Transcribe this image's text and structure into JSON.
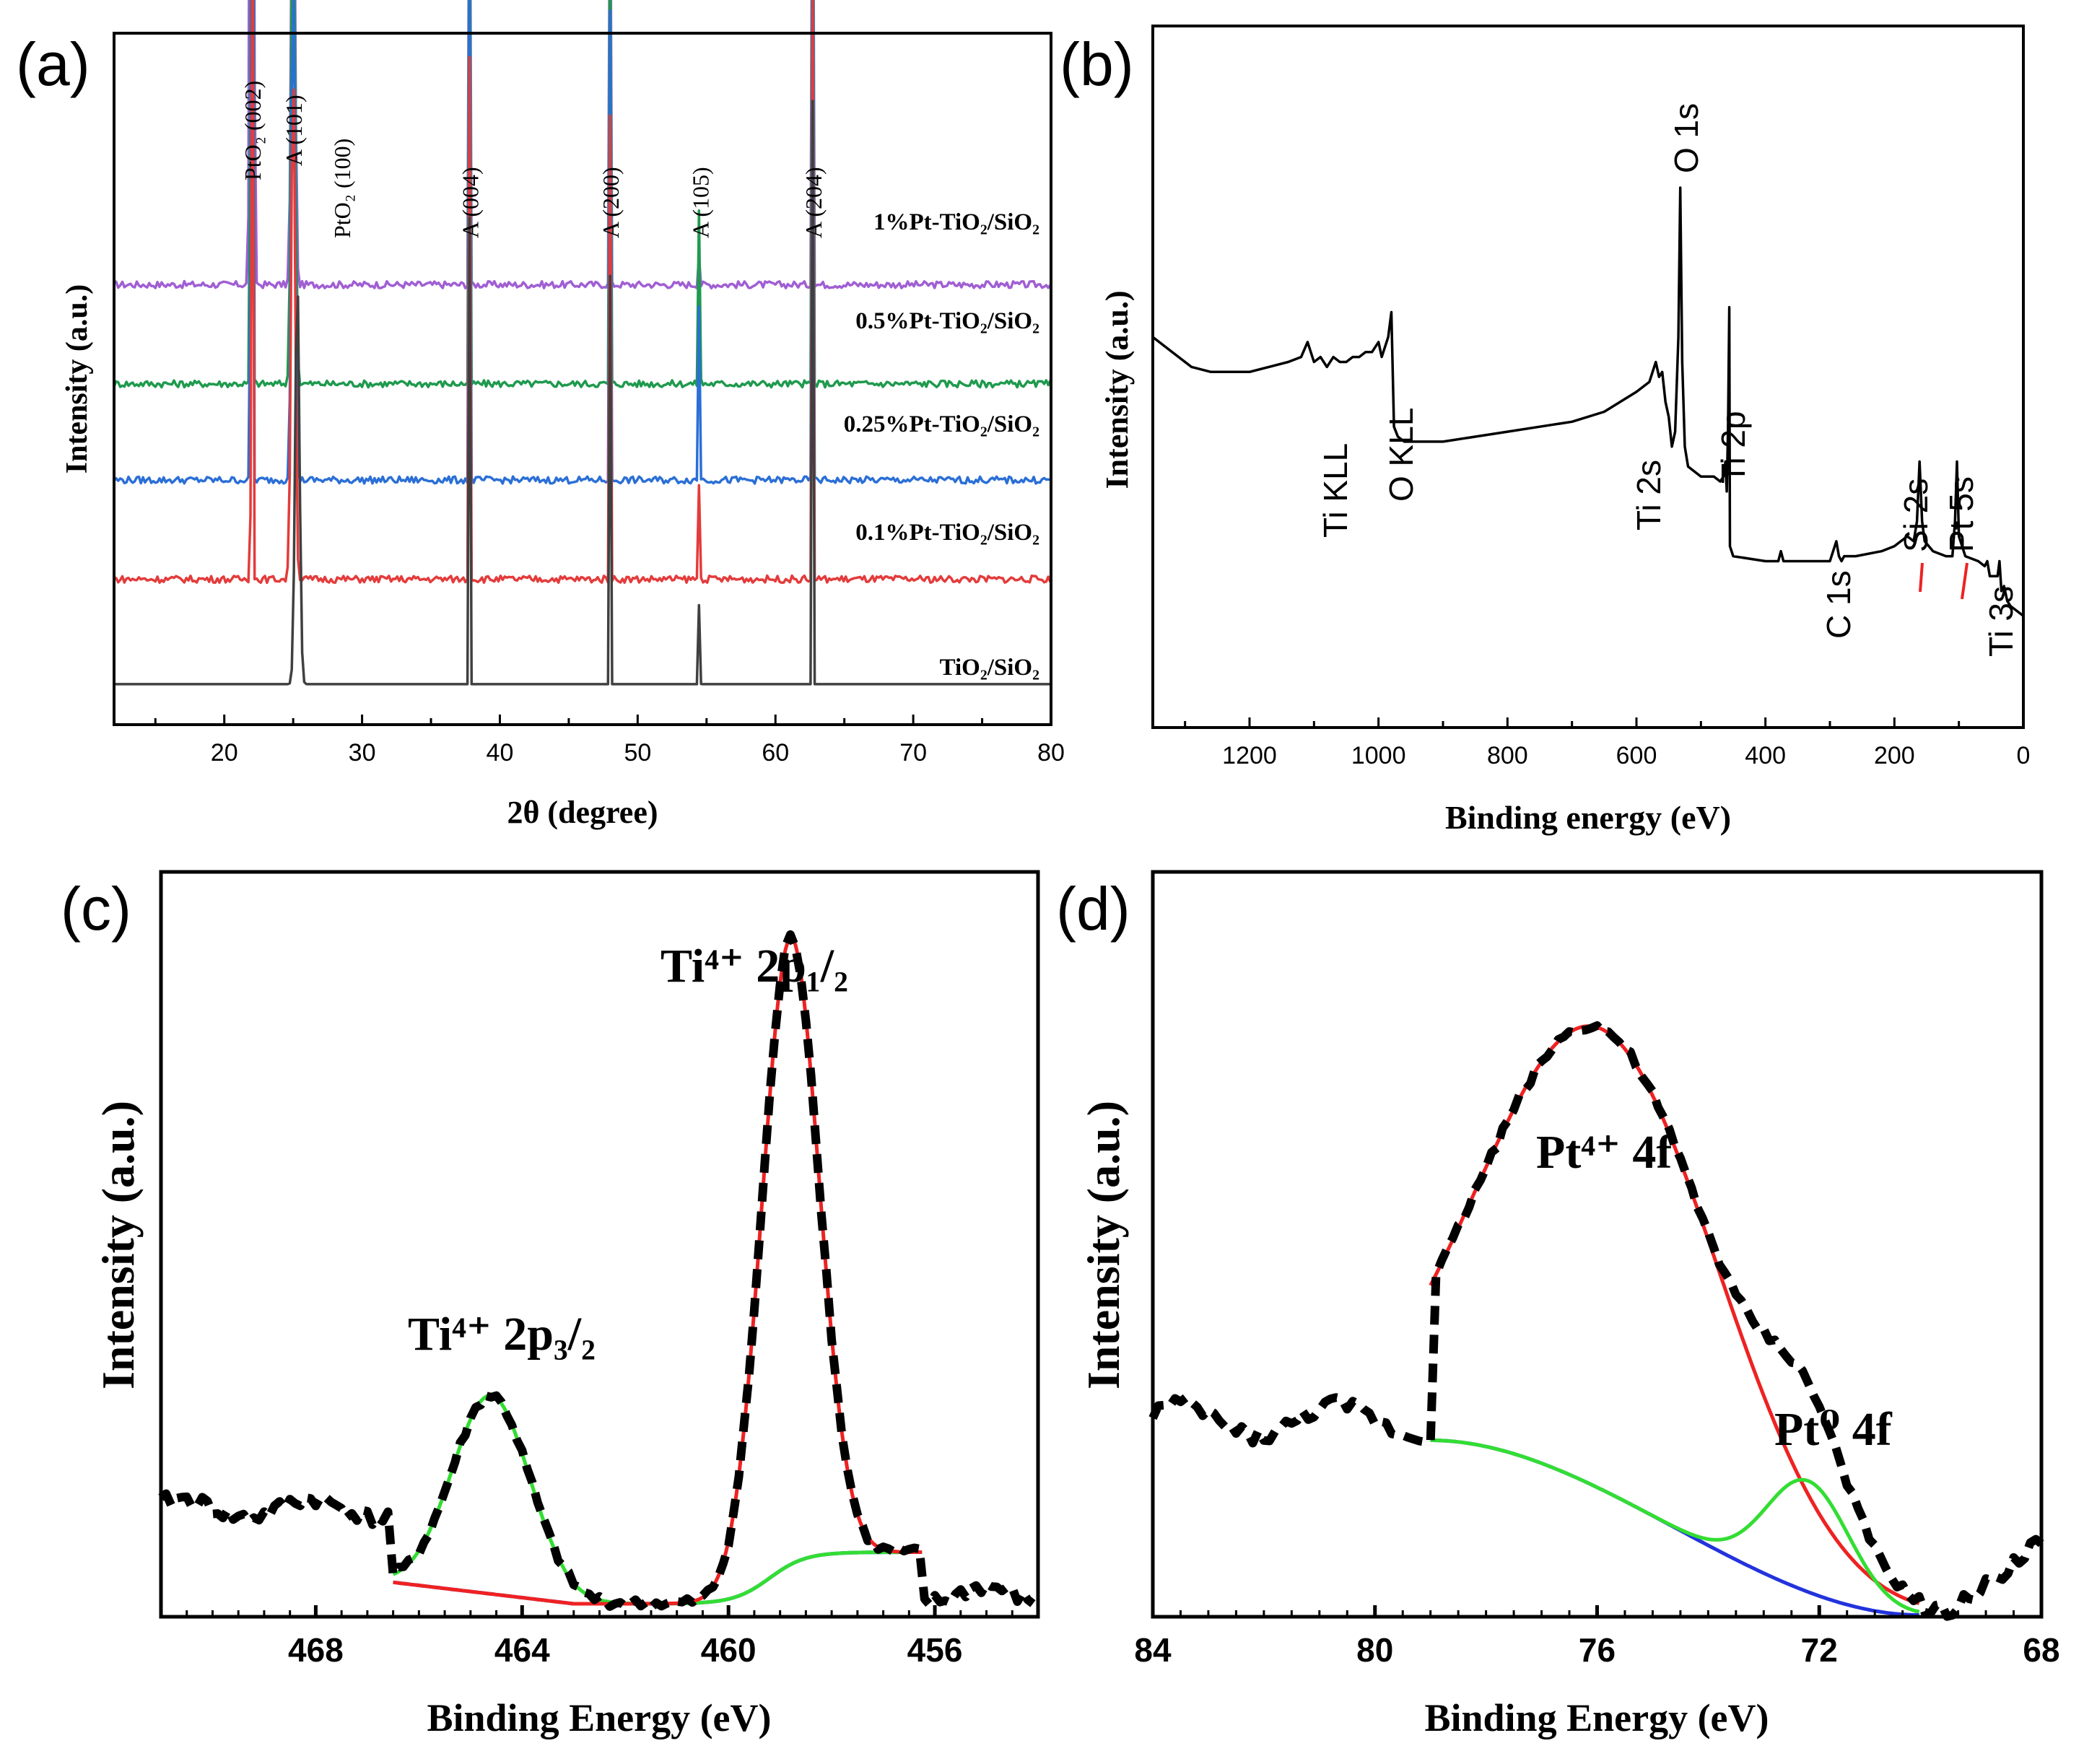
{
  "chart_data": [
    {
      "panel": "(a)",
      "type": "line",
      "xlabel": "2θ (degree)",
      "ylabel": "Intensity (a.u.)",
      "xlim": [
        12,
        80
      ],
      "xticks": [
        20,
        30,
        40,
        50,
        60,
        70,
        80
      ],
      "peak_labels": [
        {
          "text": "PtO₂ (002)",
          "x": 22
        },
        {
          "text": "A (101)",
          "x": 25
        },
        {
          "text": "PtO₂ (100)",
          "x": 28.5
        },
        {
          "text": "A (004)",
          "x": 37.8
        },
        {
          "text": "A (200)",
          "x": 48
        },
        {
          "text": "A (105)",
          "x": 54.5
        },
        {
          "text": "A (204)",
          "x": 62.7
        }
      ],
      "series": [
        {
          "name": "1%Pt-TiO₂/SiO₂",
          "color": "#a05fd3",
          "baseline": 0.7,
          "peaks": [
            [
              22,
              0.1,
              2.6
            ],
            [
              25,
              0.13,
              0.9
            ],
            [
              37.8,
              0.02,
              0.9
            ],
            [
              48,
              0.02,
              0.8
            ],
            [
              54.5,
              0.02,
              1.2
            ],
            [
              62.7,
              0.015,
              1.0
            ]
          ]
        },
        {
          "name": "0.5%Pt-TiO₂/SiO₂",
          "color": "#1f9a4e",
          "baseline": 0.53,
          "peaks": [
            [
              22,
              0.055,
              2.6
            ],
            [
              25,
              0.14,
              0.9
            ],
            [
              37.8,
              0.03,
              0.9
            ],
            [
              48,
              0.03,
              0.8
            ],
            [
              54.5,
              0.03,
              1.2
            ],
            [
              62.7,
              0.015,
              1.0
            ]
          ]
        },
        {
          "name": "0.25%Pt-TiO₂/SiO₂",
          "color": "#2b6fd6",
          "baseline": 0.365,
          "peaks": [
            [
              22,
              0.05,
              2.6
            ],
            [
              25,
              0.13,
              0.9
            ],
            [
              37.8,
              0.025,
              0.9
            ],
            [
              48,
              0.025,
              0.8
            ],
            [
              54.5,
              0.03,
              1.2
            ],
            [
              62.7,
              0.015,
              1.0
            ]
          ]
        },
        {
          "name": "0.1%Pt-TiO₂/SiO₂",
          "color": "#e43b3b",
          "baseline": 0.195,
          "peaks": [
            [
              22,
              0.04,
              2.6
            ],
            [
              25,
              0.14,
              0.9
            ],
            [
              37.8,
              0.025,
              0.9
            ],
            [
              48,
              0.025,
              0.8
            ],
            [
              54.5,
              0.025,
              1.2
            ],
            [
              62.7,
              0.015,
              1.0
            ]
          ]
        },
        {
          "name": "TiO₂/SiO₂",
          "color": "#404040",
          "baseline": 0.015,
          "peaks": [
            [
              25.3,
              0.155,
              0.7
            ],
            [
              37.8,
              0.025,
              0.8
            ],
            [
              48,
              0.025,
              0.7
            ],
            [
              54.5,
              0.025,
              1.0
            ],
            [
              62.7,
              0.012,
              1.0
            ],
            [
              69.5,
              0.006,
              1.5
            ],
            [
              75.5,
              0.006,
              1.5
            ]
          ]
        }
      ]
    },
    {
      "panel": "(b)",
      "type": "line",
      "xlabel": "Binding energy (eV)",
      "ylabel": "Intensity (a.u.)",
      "xlim": [
        1350,
        0
      ],
      "xticks": [
        1200,
        1000,
        800,
        600,
        400,
        200,
        0
      ],
      "annotations": [
        "Ti KLL",
        "O KLL",
        "Ti 2s",
        "O 1s",
        "Ti 2p",
        "C 1s",
        "Si 2s",
        "Pt 5s",
        "Ti 3s"
      ],
      "series": [
        {
          "name": "survey",
          "color": "#000000",
          "x": [
            1350,
            1320,
            1290,
            1260,
            1230,
            1200,
            1170,
            1140,
            1120,
            1110,
            1100,
            1090,
            1080,
            1070,
            1060,
            1050,
            1040,
            1030,
            1020,
            1010,
            1000,
            995,
            990,
            985,
            980,
            976,
            970,
            960,
            940,
            900,
            850,
            800,
            750,
            700,
            650,
            600,
            580,
            570,
            565,
            560,
            555,
            550,
            545,
            540,
            535,
            532,
            529,
            525,
            520,
            500,
            480,
            470,
            465,
            462,
            460,
            458,
            456,
            455,
            450,
            400,
            380,
            376,
            372,
            350,
            320,
            300,
            290,
            286,
            282,
            278,
            260,
            220,
            200,
            180,
            170,
            165,
            161,
            157,
            153,
            140,
            120,
            110,
            106,
            103,
            100,
            90,
            70,
            60,
            56,
            52,
            40,
            37,
            34,
            30,
            25,
            20,
            10,
            0
          ],
          "y": [
            0.7,
            0.67,
            0.64,
            0.63,
            0.63,
            0.63,
            0.64,
            0.65,
            0.66,
            0.69,
            0.65,
            0.66,
            0.64,
            0.66,
            0.65,
            0.65,
            0.66,
            0.66,
            0.67,
            0.67,
            0.69,
            0.66,
            0.68,
            0.7,
            0.75,
            0.52,
            0.5,
            0.49,
            0.49,
            0.49,
            0.5,
            0.51,
            0.52,
            0.53,
            0.55,
            0.59,
            0.61,
            0.65,
            0.62,
            0.63,
            0.57,
            0.54,
            0.48,
            0.51,
            0.7,
            1.0,
            0.65,
            0.48,
            0.44,
            0.42,
            0.42,
            0.41,
            0.42,
            0.45,
            0.39,
            0.52,
            0.76,
            0.28,
            0.26,
            0.25,
            0.25,
            0.27,
            0.25,
            0.25,
            0.25,
            0.25,
            0.29,
            0.26,
            0.25,
            0.26,
            0.26,
            0.27,
            0.28,
            0.3,
            0.29,
            0.33,
            0.45,
            0.33,
            0.29,
            0.27,
            0.26,
            0.26,
            0.33,
            0.45,
            0.3,
            0.26,
            0.25,
            0.24,
            0.25,
            0.22,
            0.22,
            0.25,
            0.19,
            0.2,
            0.17,
            0.16,
            0.15,
            0.14
          ]
        }
      ]
    },
    {
      "panel": "(c)",
      "type": "line",
      "xlabel": "Binding Energy (eV)",
      "ylabel": "Intensity (a.u.)",
      "xlim": [
        471,
        454
      ],
      "xticks": [
        468,
        464,
        460,
        456
      ],
      "annotations": [
        "Ti⁴⁺ 2p₃/₂",
        "Ti⁴⁺ 2p₁/₂"
      ],
      "peaks": [
        {
          "name": "Ti4+ 2p3/2",
          "center": 464.6,
          "sigma": 0.75,
          "height": 0.25,
          "color": "#33dd33"
        },
        {
          "name": "Ti4+ 2p1/2",
          "center": 458.8,
          "sigma": 0.55,
          "height": 0.79,
          "color": "#ee2222"
        }
      ],
      "background": {
        "name": "baseline",
        "color": "#2233dd",
        "fit_range": [
          466.5,
          456.2
        ]
      },
      "measured": {
        "name": "raw data",
        "color": "#000000",
        "style": "dashed"
      }
    },
    {
      "panel": "(d)",
      "type": "line",
      "xlabel": "Binding Energy (eV)",
      "ylabel": "Intensity (a.u.)",
      "xlim": [
        84,
        68
      ],
      "xticks": [
        84,
        80,
        76,
        72,
        68
      ],
      "annotations": [
        "Pt⁴⁺ 4f",
        "Pt⁰ 4f"
      ],
      "peaks": [
        {
          "name": "Pt4+ 4f",
          "center": 75.9,
          "sigma": 2.1,
          "height": 0.58,
          "color": "#ee2222"
        },
        {
          "name": "Pt0 4f",
          "center": 72.2,
          "sigma": 0.75,
          "height": 0.14,
          "color": "#33dd33"
        }
      ],
      "background": {
        "name": "baseline",
        "color": "#2233dd",
        "fit_range": [
          79,
          70.2
        ]
      },
      "measured": {
        "name": "raw data",
        "color": "#000000",
        "style": "dashed"
      }
    }
  ]
}
